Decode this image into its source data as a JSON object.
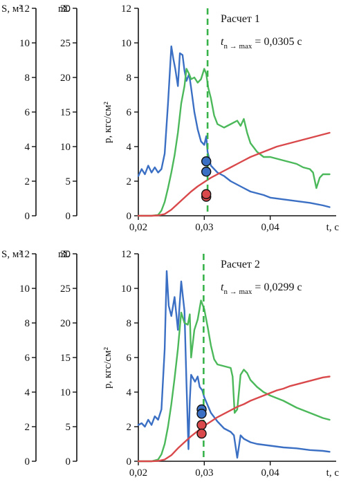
{
  "colors": {
    "blue": "#3a6fc4",
    "green": "#4bb85a",
    "red": "#d9484a",
    "axis": "#111111",
    "dashed": "#37b34a"
  },
  "chart_data": [
    {
      "type": "line",
      "annotation_title": "Расчет 1",
      "annotation_value": "0,0305 с",
      "t_marker": 0.0305,
      "xlabel": "t, с",
      "ylabel": "p, кгс/см²",
      "xlim": [
        0.02,
        0.05
      ],
      "ylim": [
        0,
        12
      ],
      "x_ticks": [
        0.02,
        0.03,
        0.04
      ],
      "x_tick_labels": [
        "0,02",
        "0,03",
        "0,04"
      ],
      "y_ticks": [
        0,
        2,
        4,
        6,
        8,
        10,
        12
      ],
      "y_tick_labels": [
        "0",
        "2",
        "4",
        "6",
        "8",
        "10",
        "12"
      ],
      "s_axis": {
        "label": "S, м²",
        "ticks": [
          "0",
          "2",
          "4",
          "6",
          "8",
          "10",
          "12"
        ]
      },
      "n_axis": {
        "label": "nΣ",
        "ticks": [
          "0",
          "5",
          "10",
          "15",
          "20",
          "25",
          "30"
        ]
      },
      "series": [
        {
          "color": "blue",
          "x": [
            0.02,
            0.0205,
            0.021,
            0.0215,
            0.022,
            0.0225,
            0.023,
            0.0235,
            0.024,
            0.0245,
            0.025,
            0.0253,
            0.0256,
            0.026,
            0.0263,
            0.0267,
            0.027,
            0.0273,
            0.0277,
            0.028,
            0.0285,
            0.029,
            0.0295,
            0.03,
            0.0303,
            0.0305,
            0.031,
            0.032,
            0.033,
            0.034,
            0.035,
            0.036,
            0.037,
            0.038,
            0.039,
            0.04,
            0.042,
            0.044,
            0.046,
            0.048,
            0.049
          ],
          "y": [
            2.3,
            2.7,
            2.4,
            2.9,
            2.5,
            2.8,
            2.5,
            2.7,
            3.6,
            6.5,
            9.8,
            9.1,
            8.5,
            7.5,
            9.4,
            9.3,
            8.4,
            7.8,
            8.2,
            7.4,
            6.0,
            5.0,
            4.3,
            4.1,
            4.6,
            3.7,
            2.9,
            2.5,
            2.3,
            2.0,
            1.8,
            1.6,
            1.4,
            1.3,
            1.2,
            1.05,
            0.95,
            0.85,
            0.75,
            0.6,
            0.5
          ]
        },
        {
          "color": "green",
          "x": [
            0.02,
            0.022,
            0.023,
            0.0235,
            0.024,
            0.0245,
            0.025,
            0.0255,
            0.026,
            0.0265,
            0.027,
            0.0273,
            0.0277,
            0.028,
            0.0285,
            0.029,
            0.0295,
            0.03,
            0.0303,
            0.0306,
            0.031,
            0.0315,
            0.032,
            0.033,
            0.034,
            0.035,
            0.0355,
            0.036,
            0.0365,
            0.037,
            0.038,
            0.039,
            0.04,
            0.041,
            0.042,
            0.043,
            0.044,
            0.045,
            0.046,
            0.0465,
            0.047,
            0.0475,
            0.048,
            0.049
          ],
          "y": [
            0,
            0,
            0.05,
            0.3,
            0.8,
            1.6,
            2.5,
            3.5,
            4.8,
            6.5,
            7.5,
            8.5,
            8.2,
            7.9,
            8.0,
            7.7,
            7.9,
            8.5,
            8.2,
            7.4,
            6.8,
            5.8,
            5.3,
            5.1,
            5.3,
            5.5,
            5.2,
            5.6,
            4.8,
            4.2,
            3.7,
            3.4,
            3.4,
            3.3,
            3.2,
            3.1,
            3.0,
            2.8,
            2.7,
            2.5,
            1.6,
            2.2,
            2.4,
            2.4
          ]
        },
        {
          "color": "red",
          "x": [
            0.02,
            0.021,
            0.022,
            0.023,
            0.024,
            0.025,
            0.026,
            0.027,
            0.028,
            0.029,
            0.03,
            0.031,
            0.032,
            0.033,
            0.034,
            0.035,
            0.036,
            0.037,
            0.038,
            0.039,
            0.04,
            0.041,
            0.042,
            0.043,
            0.044,
            0.045,
            0.046,
            0.047,
            0.048,
            0.049
          ],
          "y": [
            0,
            0,
            0,
            0.02,
            0.1,
            0.35,
            0.7,
            1.05,
            1.4,
            1.7,
            1.95,
            2.2,
            2.4,
            2.6,
            2.8,
            3.0,
            3.2,
            3.4,
            3.55,
            3.7,
            3.85,
            4.0,
            4.1,
            4.2,
            4.3,
            4.4,
            4.5,
            4.6,
            4.7,
            4.8
          ]
        }
      ],
      "markers": [
        {
          "color": "blue",
          "x": 0.0303,
          "y": 3.15
        },
        {
          "color": "blue",
          "x": 0.0303,
          "y": 2.55
        },
        {
          "color": "red",
          "x": 0.0303,
          "y": 1.1
        },
        {
          "color": "red",
          "x": 0.0303,
          "y": 1.25
        }
      ]
    },
    {
      "type": "line",
      "annotation_title": "Расчет 2",
      "annotation_value": "0,0299 с",
      "t_marker": 0.0299,
      "xlabel": "t, с",
      "ylabel": "p, кгс/см²",
      "xlim": [
        0.02,
        0.05
      ],
      "ylim": [
        0,
        12
      ],
      "x_ticks": [
        0.02,
        0.03,
        0.04
      ],
      "x_tick_labels": [
        "0,02",
        "0,03",
        "0,04"
      ],
      "y_ticks": [
        0,
        2,
        4,
        6,
        8,
        10,
        12
      ],
      "y_tick_labels": [
        "0",
        "2",
        "4",
        "6",
        "8",
        "10",
        "12"
      ],
      "s_axis": {
        "label": "S, м²",
        "ticks": [
          "0",
          "2",
          "4",
          "6",
          "8",
          "10",
          "12"
        ]
      },
      "n_axis": {
        "label": "nΣ",
        "ticks": [
          "0",
          "5",
          "10",
          "15",
          "20",
          "25",
          "30"
        ]
      },
      "series": [
        {
          "color": "blue",
          "x": [
            0.02,
            0.0205,
            0.021,
            0.0215,
            0.022,
            0.0225,
            0.023,
            0.0235,
            0.024,
            0.0243,
            0.0246,
            0.025,
            0.0255,
            0.026,
            0.0265,
            0.027,
            0.0273,
            0.0276,
            0.0278,
            0.028,
            0.0283,
            0.0286,
            0.029,
            0.0293,
            0.0297,
            0.03,
            0.031,
            0.032,
            0.033,
            0.034,
            0.0345,
            0.035,
            0.0355,
            0.036,
            0.037,
            0.038,
            0.04,
            0.042,
            0.044,
            0.046,
            0.048,
            0.049
          ],
          "y": [
            2.1,
            2.2,
            2.0,
            2.4,
            2.1,
            2.6,
            2.4,
            3.0,
            6.5,
            11.0,
            9.0,
            8.4,
            9.5,
            7.6,
            10.4,
            8.7,
            4.5,
            0.7,
            3.5,
            5.0,
            4.8,
            4.6,
            4.9,
            4.3,
            4.1,
            3.7,
            2.8,
            2.3,
            1.9,
            1.7,
            1.5,
            0.2,
            1.5,
            1.3,
            1.1,
            1.0,
            0.9,
            0.8,
            0.75,
            0.65,
            0.6,
            0.55
          ]
        },
        {
          "color": "green",
          "x": [
            0.02,
            0.022,
            0.023,
            0.0235,
            0.024,
            0.0245,
            0.025,
            0.0255,
            0.026,
            0.0265,
            0.027,
            0.0275,
            0.0278,
            0.028,
            0.0285,
            0.029,
            0.0295,
            0.03,
            0.0305,
            0.031,
            0.0315,
            0.032,
            0.033,
            0.034,
            0.0343,
            0.0346,
            0.035,
            0.0355,
            0.036,
            0.0365,
            0.037,
            0.038,
            0.039,
            0.04,
            0.042,
            0.044,
            0.046,
            0.048,
            0.049
          ],
          "y": [
            0,
            0,
            0.1,
            0.4,
            1.0,
            2.0,
            3.3,
            4.8,
            6.5,
            8.6,
            8.0,
            7.9,
            8.5,
            6.0,
            7.6,
            8.2,
            9.3,
            8.8,
            7.8,
            6.7,
            5.9,
            5.6,
            5.5,
            5.4,
            4.9,
            2.8,
            3.0,
            5.0,
            5.3,
            5.1,
            4.7,
            4.3,
            4.0,
            3.8,
            3.5,
            3.1,
            2.8,
            2.5,
            2.4
          ]
        },
        {
          "color": "red",
          "x": [
            0.02,
            0.021,
            0.022,
            0.023,
            0.024,
            0.025,
            0.026,
            0.027,
            0.028,
            0.029,
            0.03,
            0.031,
            0.032,
            0.033,
            0.034,
            0.035,
            0.036,
            0.037,
            0.038,
            0.039,
            0.04,
            0.041,
            0.042,
            0.043,
            0.044,
            0.045,
            0.046,
            0.047,
            0.048,
            0.049
          ],
          "y": [
            0,
            0,
            0,
            0.02,
            0.1,
            0.35,
            0.75,
            1.1,
            1.45,
            1.75,
            2.05,
            2.3,
            2.55,
            2.75,
            2.95,
            3.15,
            3.3,
            3.5,
            3.65,
            3.8,
            3.95,
            4.1,
            4.2,
            4.35,
            4.45,
            4.55,
            4.65,
            4.75,
            4.85,
            4.9
          ]
        }
      ],
      "markers": [
        {
          "color": "blue",
          "x": 0.0296,
          "y": 3.0
        },
        {
          "color": "blue",
          "x": 0.0296,
          "y": 2.75
        },
        {
          "color": "red",
          "x": 0.0296,
          "y": 2.1
        },
        {
          "color": "red",
          "x": 0.0296,
          "y": 1.6
        }
      ]
    }
  ]
}
